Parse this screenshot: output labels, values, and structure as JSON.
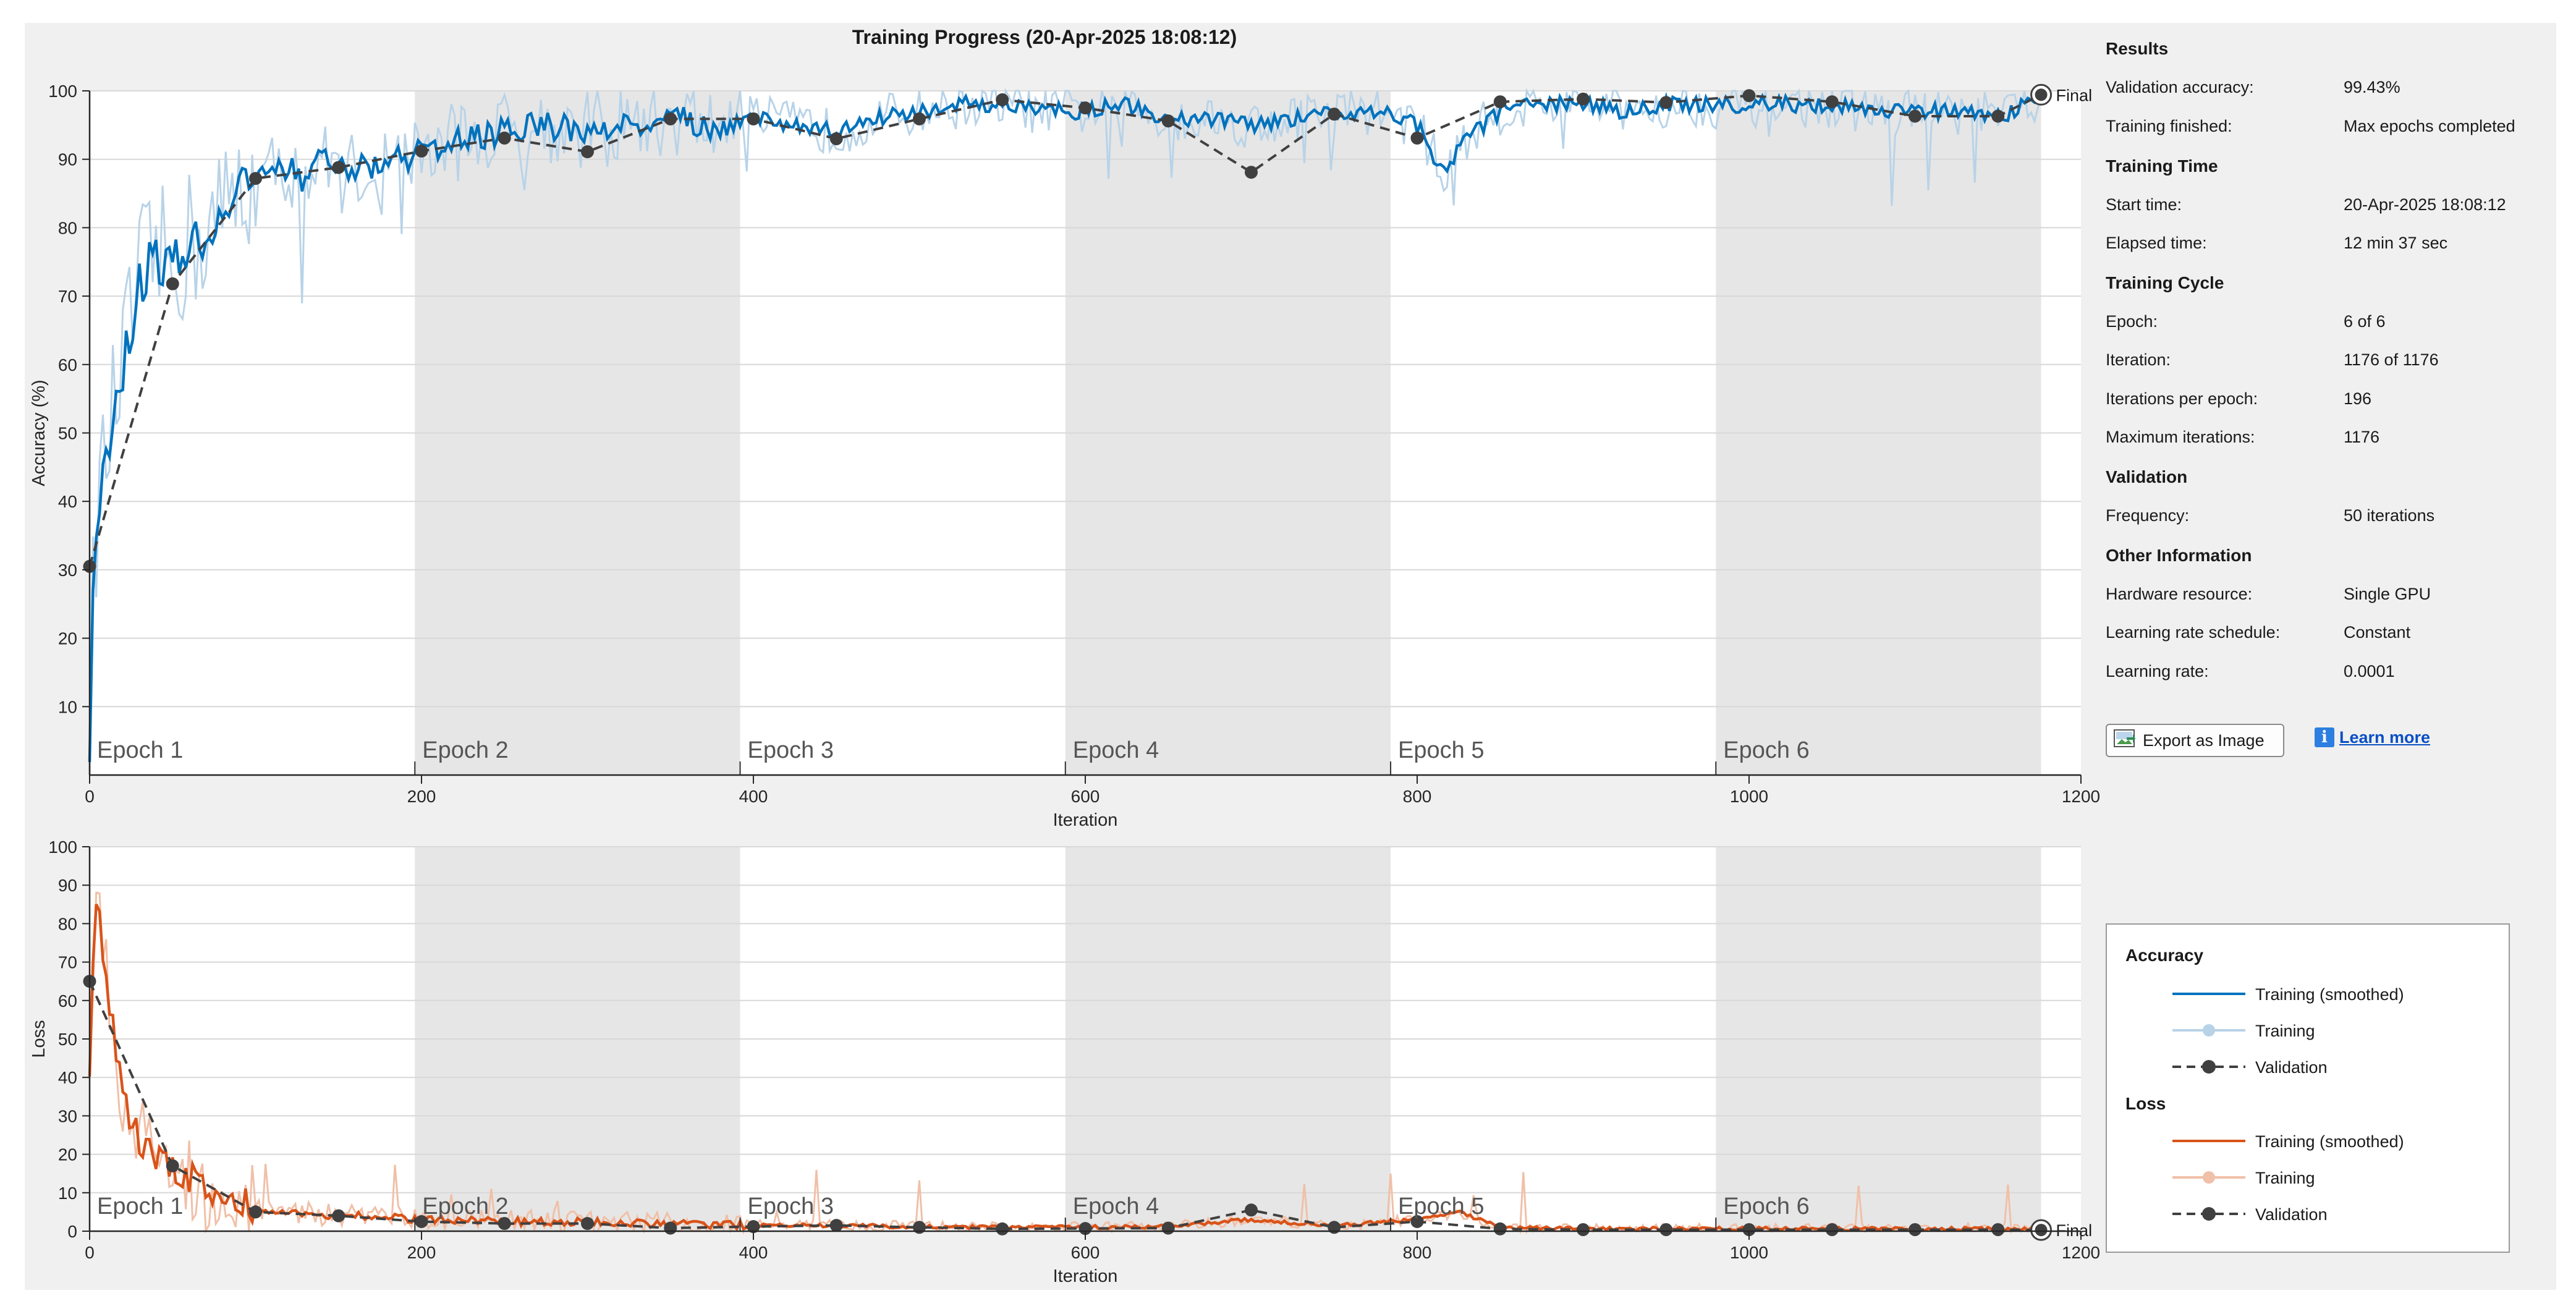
{
  "title": "Training Progress (20-Apr-2025 18:08:12)",
  "colors": {
    "acc_smoothed": "#0072bd",
    "acc_training": "#b8d3e8",
    "loss_smoothed": "#d95319",
    "loss_training": "#f0c0a8",
    "validation": "#404040",
    "epoch_band": "#e6e6e6"
  },
  "panel": {
    "results_heading": "Results",
    "validation_accuracy_label": "Validation accuracy:",
    "validation_accuracy": "99.43%",
    "training_finished_label": "Training finished:",
    "training_finished": "Max epochs completed",
    "training_time_heading": "Training Time",
    "start_time_label": "Start time:",
    "start_time": "20-Apr-2025 18:08:12",
    "elapsed_time_label": "Elapsed time:",
    "elapsed_time": "12 min 37 sec",
    "training_cycle_heading": "Training Cycle",
    "epoch_label": "Epoch:",
    "epoch": "6 of 6",
    "iteration_label": "Iteration:",
    "iteration": "1176 of 1176",
    "iter_per_epoch_label": "Iterations per epoch:",
    "iter_per_epoch": "196",
    "max_iter_label": "Maximum iterations:",
    "max_iter": "1176",
    "validation_heading": "Validation",
    "frequency_label": "Frequency:",
    "frequency": "50 iterations",
    "other_heading": "Other Information",
    "hardware_label": "Hardware resource:",
    "hardware": "Single GPU",
    "lr_schedule_label": "Learning rate schedule:",
    "lr_schedule": "Constant",
    "lr_label": "Learning rate:",
    "lr": "0.0001",
    "export_button": "Export as Image",
    "learn_more": "Learn more"
  },
  "legend": {
    "accuracy_heading": "Accuracy",
    "loss_heading": "Loss",
    "training_smoothed": "Training (smoothed)",
    "training": "Training",
    "validation": "Validation"
  },
  "chart_data": [
    {
      "type": "line",
      "ylabel": "Accuracy (%)",
      "xlabel": "Iteration",
      "xlim": [
        0,
        1200
      ],
      "ylim": [
        0,
        100
      ],
      "xticks": [
        0,
        200,
        400,
        600,
        800,
        1000,
        1200
      ],
      "yticks": [
        10,
        20,
        30,
        40,
        50,
        60,
        70,
        80,
        90,
        100
      ],
      "epoch_labels": [
        "Epoch 1",
        "Epoch 2",
        "Epoch 3",
        "Epoch 4",
        "Epoch 5",
        "Epoch 6"
      ],
      "epoch_boundaries": [
        0,
        196,
        392,
        588,
        784,
        980,
        1176
      ],
      "final_label": "Final",
      "series": [
        {
          "name": "Training (smoothed)",
          "x": [
            0,
            3,
            10,
            20,
            30,
            40,
            50,
            60,
            70,
            80,
            90,
            100,
            110,
            120,
            130,
            140,
            150,
            175,
            200,
            225,
            250,
            275,
            300,
            325,
            350,
            375,
            400,
            425,
            450,
            475,
            500,
            525,
            550,
            575,
            600,
            625,
            650,
            675,
            700,
            725,
            750,
            775,
            800,
            815,
            830,
            850,
            875,
            900,
            925,
            950,
            975,
            1000,
            1025,
            1050,
            1075,
            1100,
            1125,
            1150,
            1176
          ],
          "y": [
            5,
            35,
            47,
            60,
            72,
            76,
            74,
            78,
            79,
            82,
            85,
            86,
            88,
            89,
            87,
            90,
            88,
            89,
            91,
            93,
            94,
            95,
            94,
            95,
            96,
            95,
            96,
            95,
            94,
            96,
            97,
            98,
            98,
            97,
            97,
            98,
            96,
            96,
            95,
            96,
            97,
            97,
            95,
            88,
            93,
            97,
            98,
            98,
            97,
            98,
            98,
            98,
            98,
            98,
            97,
            97,
            97,
            96,
            99
          ]
        },
        {
          "name": "Validation",
          "x": [
            0,
            50,
            100,
            150,
            200,
            250,
            300,
            350,
            400,
            450,
            500,
            550,
            600,
            650,
            700,
            750,
            800,
            850,
            900,
            950,
            1000,
            1050,
            1100,
            1150,
            1176
          ],
          "y": [
            30.5,
            71.8,
            87.2,
            88.8,
            91.2,
            93.1,
            91.1,
            95.9,
            95.9,
            93.0,
            95.9,
            98.7,
            97.5,
            95.6,
            88.1,
            96.6,
            93.1,
            98.4,
            98.8,
            98.3,
            99.3,
            98.4,
            96.3,
            96.3,
            99.43
          ]
        }
      ]
    },
    {
      "type": "line",
      "ylabel": "Loss",
      "xlabel": "Iteration",
      "xlim": [
        0,
        1200
      ],
      "ylim": [
        0,
        100
      ],
      "xticks": [
        0,
        200,
        400,
        600,
        800,
        1000,
        1200
      ],
      "yticks": [
        0,
        10,
        20,
        30,
        40,
        50,
        60,
        70,
        80,
        90,
        100
      ],
      "epoch_labels": [
        "Epoch 1",
        "Epoch 2",
        "Epoch 3",
        "Epoch 4",
        "Epoch 5",
        "Epoch 6"
      ],
      "epoch_boundaries": [
        0,
        196,
        392,
        588,
        784,
        980,
        1176
      ],
      "final_label": "Final",
      "series": [
        {
          "name": "Training (smoothed)",
          "x": [
            0,
            3,
            10,
            20,
            30,
            40,
            50,
            60,
            70,
            80,
            90,
            100,
            125,
            150,
            175,
            200,
            250,
            300,
            350,
            400,
            450,
            500,
            550,
            600,
            650,
            700,
            750,
            800,
            825,
            850,
            900,
            950,
            1000,
            1050,
            1100,
            1150,
            1176
          ],
          "y": [
            40,
            90,
            65,
            35,
            24,
            20,
            16,
            14,
            12,
            10,
            8,
            6,
            5,
            4,
            4,
            3,
            2.5,
            2.5,
            1.8,
            1.5,
            1.5,
            1.2,
            1.0,
            1.0,
            1.2,
            3.0,
            1.5,
            3.0,
            5.0,
            1.0,
            0.6,
            0.6,
            0.6,
            0.6,
            0.6,
            0.6,
            0.5
          ]
        },
        {
          "name": "Validation",
          "x": [
            0,
            50,
            100,
            150,
            200,
            250,
            300,
            350,
            400,
            450,
            500,
            550,
            600,
            650,
            700,
            750,
            800,
            850,
            900,
            950,
            1000,
            1050,
            1100,
            1150,
            1176
          ],
          "y": [
            65,
            17,
            5,
            4,
            2.5,
            2.0,
            2.0,
            0.8,
            1.2,
            1.5,
            1.0,
            0.6,
            0.7,
            0.8,
            5.5,
            1.0,
            2.5,
            0.6,
            0.4,
            0.4,
            0.4,
            0.4,
            0.4,
            0.4,
            0.3
          ]
        }
      ]
    }
  ]
}
